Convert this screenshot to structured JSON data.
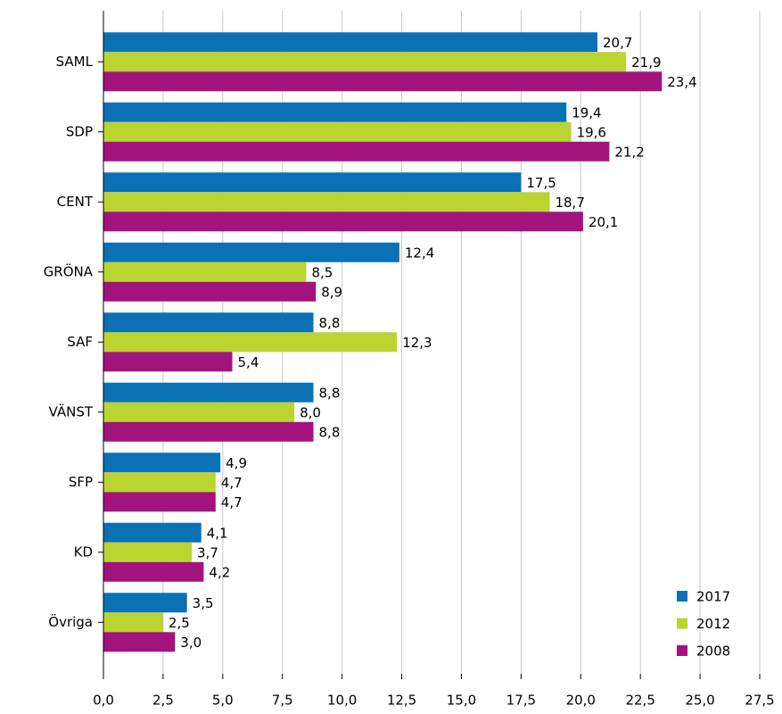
{
  "chart_data": {
    "type": "hbar",
    "categories": [
      "SAML",
      "SDP",
      "CENT",
      "GRÖNA",
      "SAF",
      "VÄNST",
      "SFP",
      "KD",
      "Övriga"
    ],
    "series": [
      {
        "name": "2017",
        "color": "#0a72b4",
        "values": [
          20.7,
          19.4,
          17.5,
          12.4,
          8.8,
          8.8,
          4.9,
          4.1,
          3.5
        ],
        "value_labels": [
          "20,7",
          "19,4",
          "17,5",
          "12,4",
          "8,8",
          "8,8",
          "4,9",
          "4,1",
          "3,5"
        ]
      },
      {
        "name": "2012",
        "color": "#bcd431",
        "values": [
          21.9,
          19.6,
          18.7,
          8.5,
          12.3,
          8.0,
          4.7,
          3.7,
          2.5
        ],
        "value_labels": [
          "21,9",
          "19,6",
          "18,7",
          "8,5",
          "12,3",
          "8,0",
          "4,7",
          "3,7",
          "2,5"
        ]
      },
      {
        "name": "2008",
        "color": "#a3137e",
        "values": [
          23.4,
          21.2,
          20.1,
          8.9,
          5.4,
          8.8,
          4.7,
          4.2,
          3.0
        ],
        "value_labels": [
          "23,4",
          "21,2",
          "20,1",
          "8,9",
          "5,4",
          "8,8",
          "4,7",
          "4,2",
          "3,0"
        ]
      }
    ],
    "xlim": [
      0,
      27.5
    ],
    "xticks": [
      {
        "value": 0,
        "label": "0,0"
      },
      {
        "value": 2.5,
        "label": "2,5"
      },
      {
        "value": 5,
        "label": "5,0"
      },
      {
        "value": 7.5,
        "label": "7,5"
      },
      {
        "value": 10,
        "label": "10,0"
      },
      {
        "value": 12.5,
        "label": "12,5"
      },
      {
        "value": 15,
        "label": "15,0"
      },
      {
        "value": 17.5,
        "label": "17,5"
      },
      {
        "value": 20,
        "label": "20,0"
      },
      {
        "value": 22.5,
        "label": "22,5"
      },
      {
        "value": 25,
        "label": "25,0"
      },
      {
        "value": 27.5,
        "label": "27,5"
      }
    ],
    "grid": true,
    "legend": "lower-right"
  }
}
